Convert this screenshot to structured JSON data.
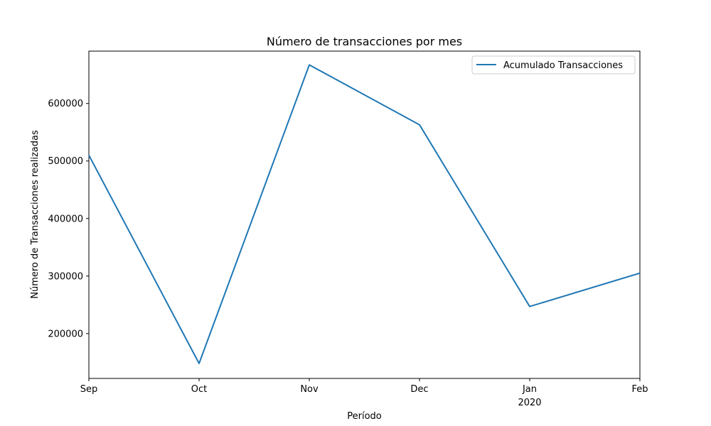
{
  "chart_data": {
    "type": "line",
    "title": "Número de transacciones por mes",
    "xlabel": "Período",
    "ylabel": "Número de Transacciones realizadas",
    "x_ticks": [
      {
        "label": "Sep",
        "sublabel": ""
      },
      {
        "label": "Oct",
        "sublabel": ""
      },
      {
        "label": "Nov",
        "sublabel": ""
      },
      {
        "label": "Dec",
        "sublabel": ""
      },
      {
        "label": "Jan",
        "sublabel": "2020"
      },
      {
        "label": "Feb",
        "sublabel": ""
      }
    ],
    "x": [
      "2019-09",
      "2019-10",
      "2019-11",
      "2019-12",
      "2020-01",
      "2020-02"
    ],
    "series": [
      {
        "name": "Acumulado Transacciones",
        "color": "#1f77b4",
        "values": [
          510000,
          148000,
          667000,
          563000,
          247000,
          305000
        ]
      }
    ],
    "ylim": [
      122000,
      691000
    ],
    "y_ticks": [
      200000,
      300000,
      400000,
      500000,
      600000
    ],
    "grid": false,
    "legend_position": "top-right"
  }
}
